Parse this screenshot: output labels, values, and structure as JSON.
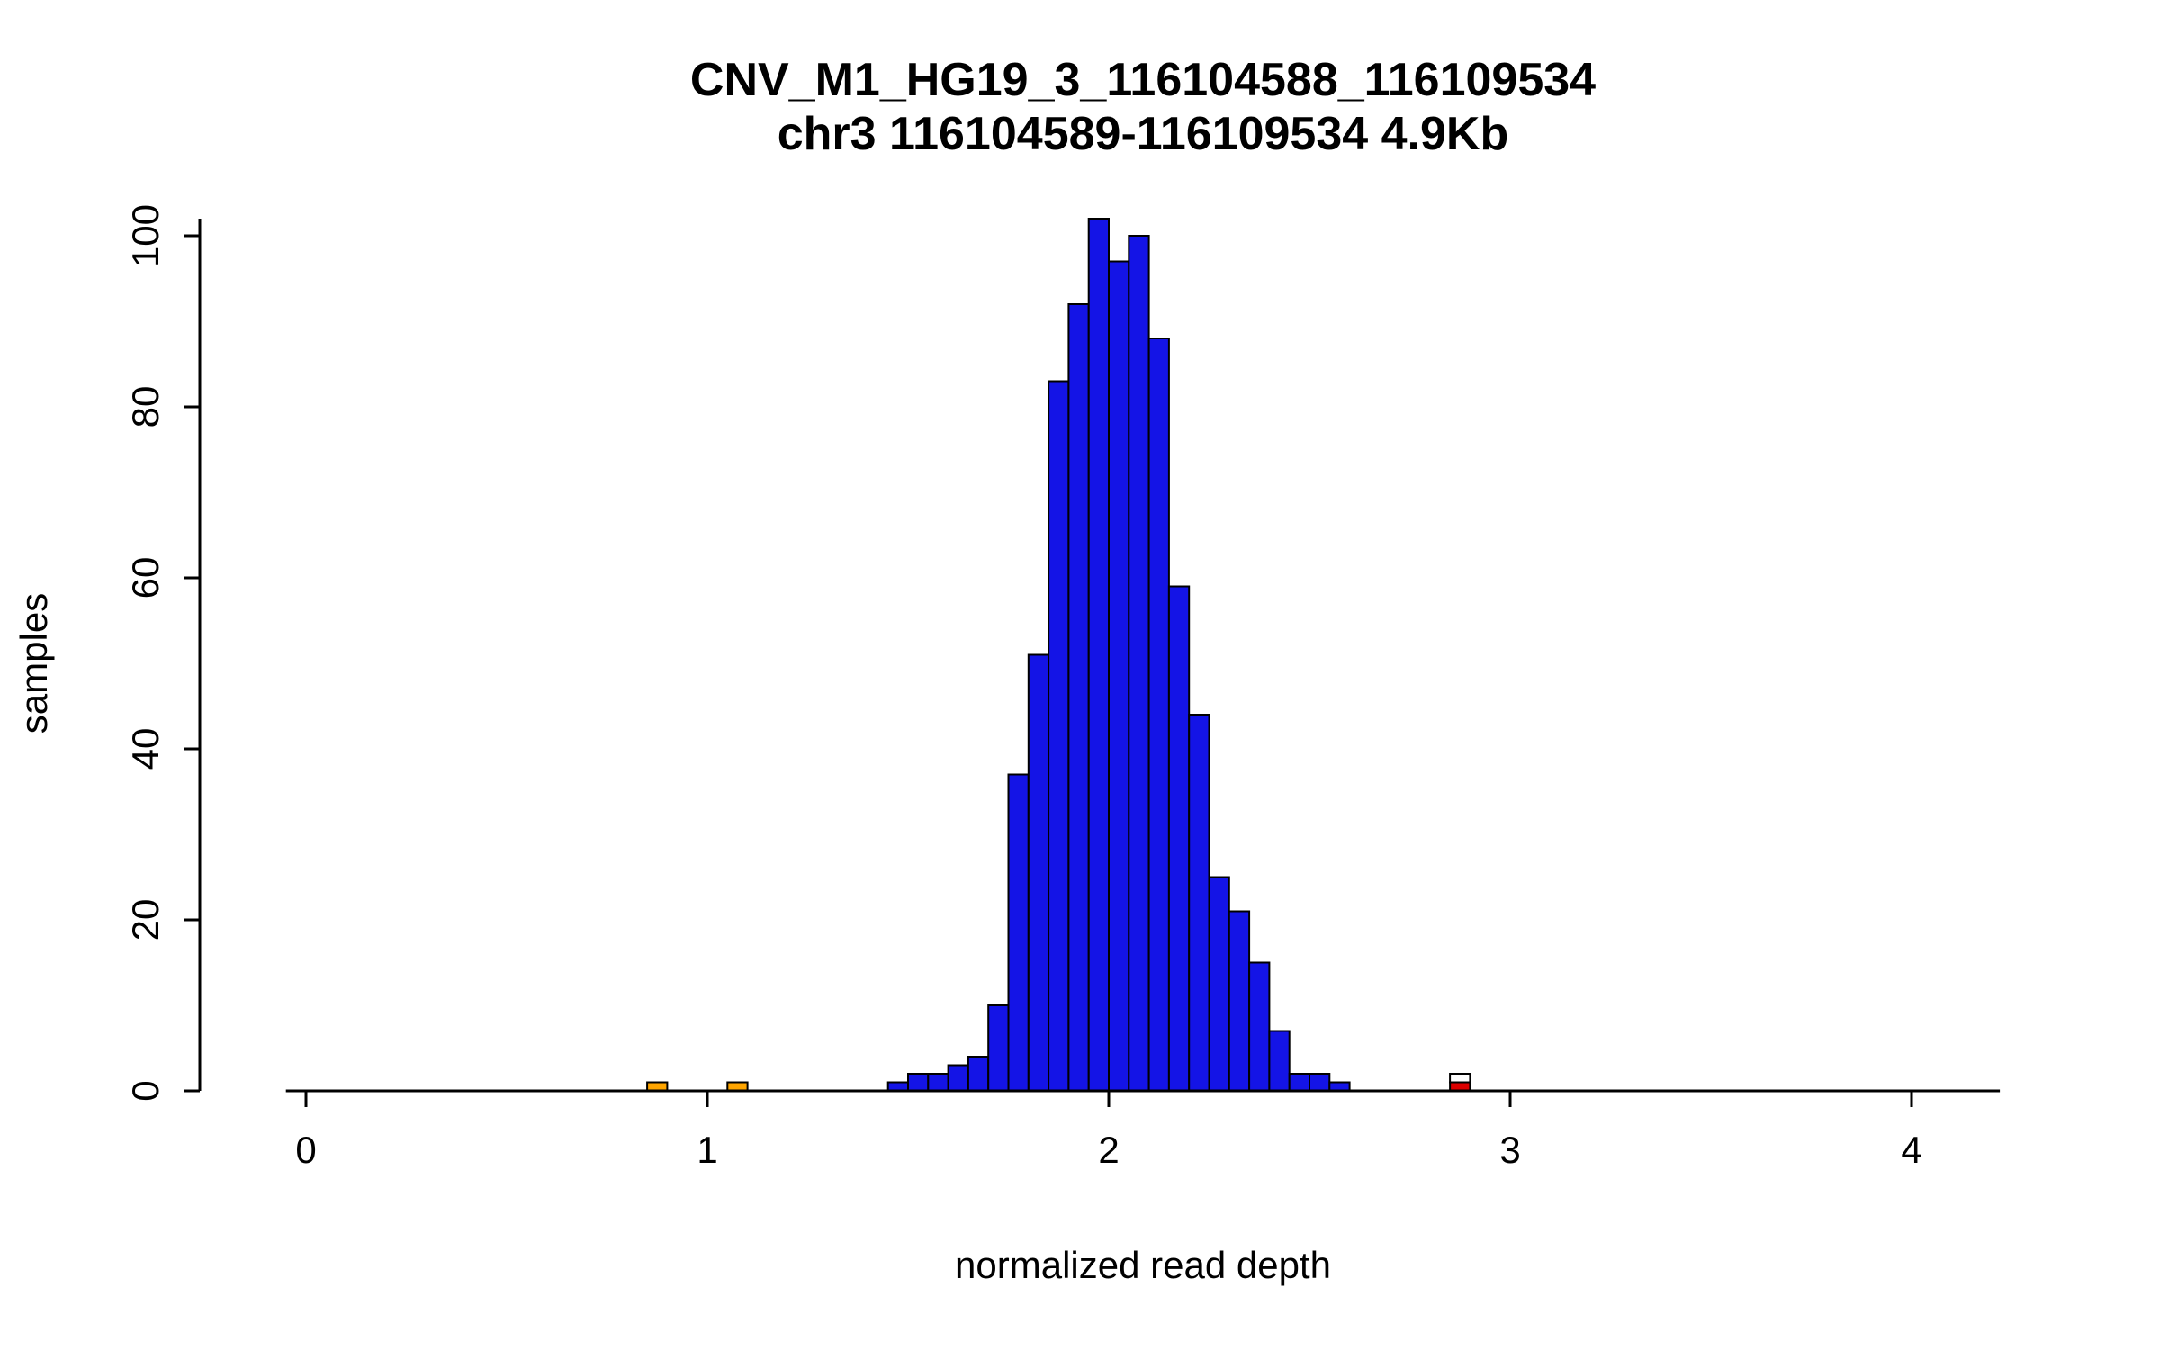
{
  "chart_data": {
    "type": "bar",
    "subtype": "histogram",
    "title": "CNV_M1_HG19_3_116104588_116109534",
    "subtitle": "chr3 116104589-116109534 4.9Kb",
    "xlabel": "normalized read depth",
    "ylabel": "samples",
    "xlim": [
      -0.05,
      4.22
    ],
    "ylim": [
      0,
      102
    ],
    "x_ticks": [
      0,
      1,
      2,
      3,
      4
    ],
    "y_ticks": [
      0,
      20,
      40,
      60,
      80,
      100
    ],
    "grid": false,
    "legend": "none",
    "bin_width": 0.05,
    "colors": {
      "blue": "#1414e6",
      "orange": "#ffa500",
      "red": "#dd0000",
      "white": "#ffffff",
      "axis": "#000000",
      "bar_border": "#000000"
    },
    "bins": [
      {
        "x": 0.85,
        "segments": [
          {
            "value": 1,
            "color": "orange"
          }
        ]
      },
      {
        "x": 1.05,
        "segments": [
          {
            "value": 1,
            "color": "orange"
          }
        ]
      },
      {
        "x": 1.45,
        "segments": [
          {
            "value": 1,
            "color": "blue"
          }
        ]
      },
      {
        "x": 1.5,
        "segments": [
          {
            "value": 2,
            "color": "blue"
          }
        ]
      },
      {
        "x": 1.55,
        "segments": [
          {
            "value": 2,
            "color": "blue"
          }
        ]
      },
      {
        "x": 1.6,
        "segments": [
          {
            "value": 3,
            "color": "blue"
          }
        ]
      },
      {
        "x": 1.65,
        "segments": [
          {
            "value": 4,
            "color": "blue"
          }
        ]
      },
      {
        "x": 1.7,
        "segments": [
          {
            "value": 10,
            "color": "blue"
          }
        ]
      },
      {
        "x": 1.75,
        "segments": [
          {
            "value": 37,
            "color": "blue"
          }
        ]
      },
      {
        "x": 1.8,
        "segments": [
          {
            "value": 51,
            "color": "blue"
          }
        ]
      },
      {
        "x": 1.85,
        "segments": [
          {
            "value": 83,
            "color": "blue"
          }
        ]
      },
      {
        "x": 1.9,
        "segments": [
          {
            "value": 92,
            "color": "blue"
          }
        ]
      },
      {
        "x": 1.95,
        "segments": [
          {
            "value": 102,
            "color": "blue"
          }
        ]
      },
      {
        "x": 2.0,
        "segments": [
          {
            "value": 97,
            "color": "blue"
          }
        ]
      },
      {
        "x": 2.05,
        "segments": [
          {
            "value": 100,
            "color": "blue"
          }
        ]
      },
      {
        "x": 2.1,
        "segments": [
          {
            "value": 88,
            "color": "blue"
          }
        ]
      },
      {
        "x": 2.15,
        "segments": [
          {
            "value": 59,
            "color": "blue"
          }
        ]
      },
      {
        "x": 2.2,
        "segments": [
          {
            "value": 44,
            "color": "blue"
          }
        ]
      },
      {
        "x": 2.25,
        "segments": [
          {
            "value": 25,
            "color": "blue"
          }
        ]
      },
      {
        "x": 2.3,
        "segments": [
          {
            "value": 21,
            "color": "blue"
          }
        ]
      },
      {
        "x": 2.35,
        "segments": [
          {
            "value": 15,
            "color": "blue"
          }
        ]
      },
      {
        "x": 2.4,
        "segments": [
          {
            "value": 7,
            "color": "blue"
          }
        ]
      },
      {
        "x": 2.45,
        "segments": [
          {
            "value": 2,
            "color": "blue"
          }
        ]
      },
      {
        "x": 2.5,
        "segments": [
          {
            "value": 2,
            "color": "blue"
          }
        ]
      },
      {
        "x": 2.55,
        "segments": [
          {
            "value": 1,
            "color": "blue"
          }
        ]
      },
      {
        "x": 2.85,
        "segments": [
          {
            "value": 1,
            "color": "red"
          },
          {
            "value": 1,
            "color": "white"
          }
        ]
      }
    ]
  }
}
